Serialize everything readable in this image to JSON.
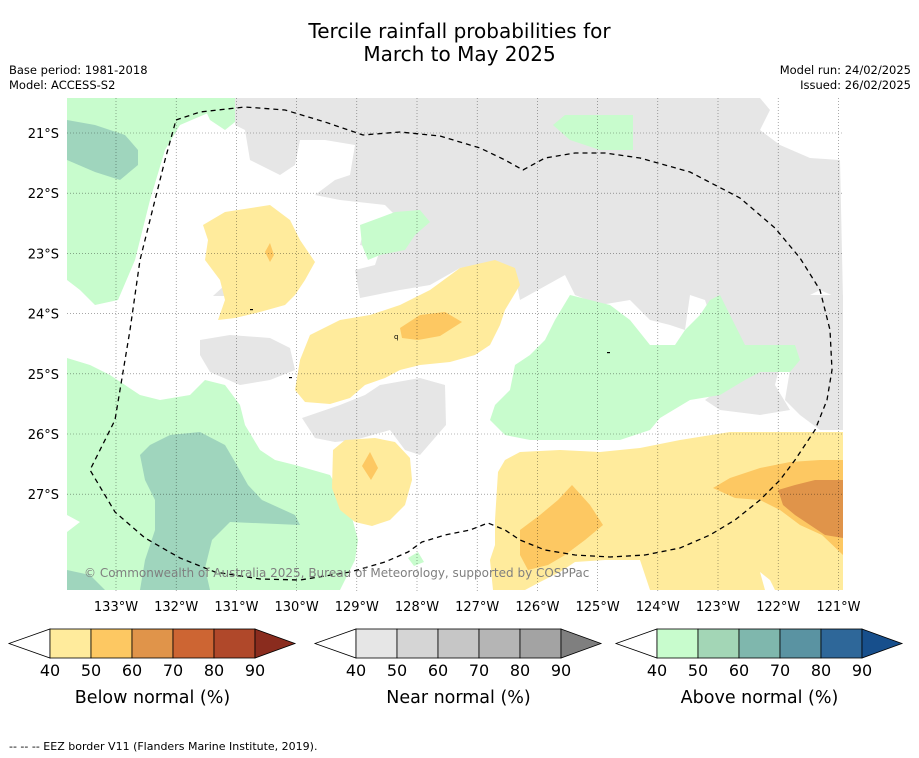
{
  "title": {
    "line1": "Tercile rainfall probabilities for",
    "line2": "March to May 2025"
  },
  "meta": {
    "base_period": "Base period: 1981-2018",
    "model": "Model: ACCESS-S2",
    "model_run": "Model run: 24/02/2025",
    "issued": "Issued: 26/02/2025"
  },
  "map": {
    "lat_labels": [
      "21°S",
      "22°S",
      "23°S",
      "24°S",
      "25°S",
      "26°S",
      "27°S"
    ],
    "lon_labels": [
      "133°W",
      "132°W",
      "131°W",
      "130°W",
      "129°W",
      "128°W",
      "127°W",
      "126°W",
      "125°W",
      "124°W",
      "123°W",
      "122°W",
      "121°W"
    ],
    "copyright": "© Commonwealth of Australia 2025, Bureau of Meteorology, supported by COSPPac",
    "colors": {
      "near_normal": "#e6e6e6",
      "below_50": "#ffeb9c",
      "below_60": "#fdc862",
      "below_70": "#e0944a",
      "above_50": "#c8fccd",
      "above_60": "#9fd5bd"
    }
  },
  "legends": [
    {
      "id": "below",
      "title": "Below normal (%)",
      "ticks": [
        "40",
        "50",
        "60",
        "70",
        "80",
        "90"
      ],
      "colors": [
        "#ffffff",
        "#ffeb9c",
        "#fdc862",
        "#e0944a",
        "#cd6533",
        "#b0482a",
        "#8a2c1e"
      ]
    },
    {
      "id": "near",
      "title": "Near normal (%)",
      "ticks": [
        "40",
        "50",
        "60",
        "70",
        "80",
        "90"
      ],
      "colors": [
        "#ffffff",
        "#e6e6e6",
        "#d5d5d5",
        "#c6c6c6",
        "#b5b5b5",
        "#a3a3a3",
        "#7f7f7f"
      ]
    },
    {
      "id": "above",
      "title": "Above normal (%)",
      "ticks": [
        "40",
        "50",
        "60",
        "70",
        "80",
        "90"
      ],
      "colors": [
        "#ffffff",
        "#c8fccd",
        "#a3d6b6",
        "#7fb7ad",
        "#5a93a2",
        "#2e6799",
        "#174f8c"
      ]
    }
  ],
  "footer": "--  --  -- EEZ border V11 (Flanders Marine Institute, 2019)."
}
